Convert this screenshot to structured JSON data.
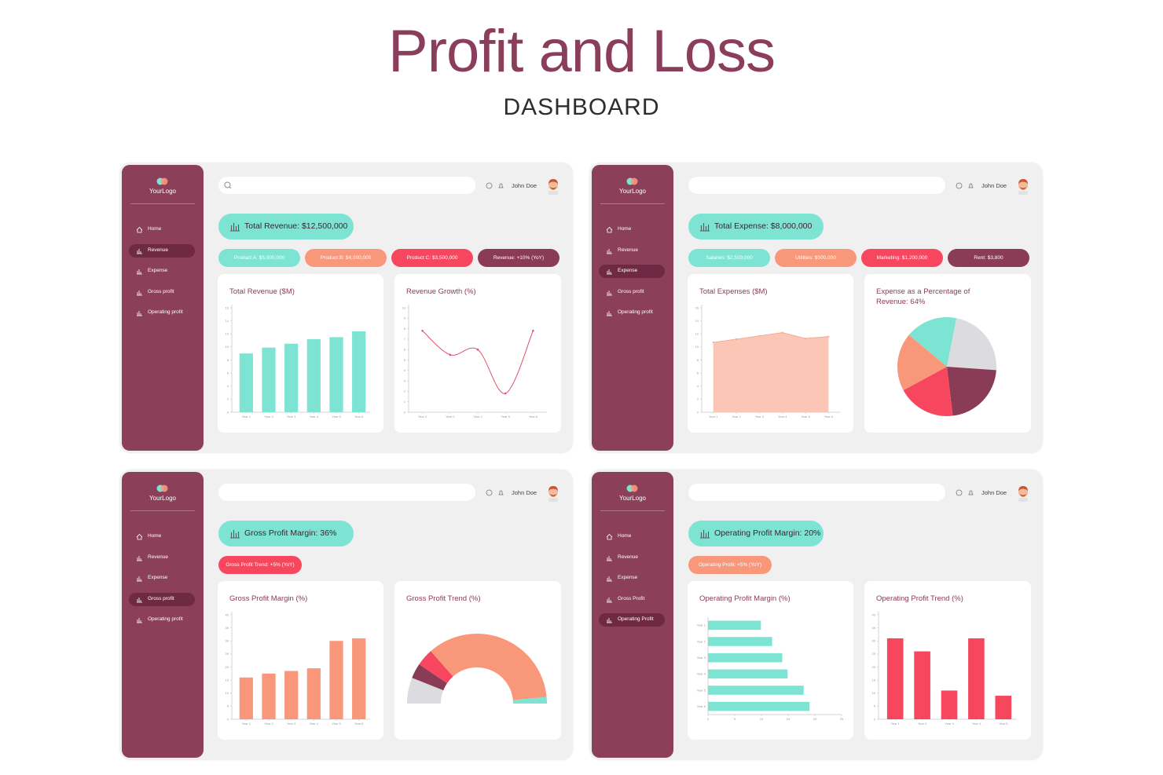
{
  "header": {
    "title": "Profit and Loss",
    "subtitle": "DASHBOARD"
  },
  "panels": [
    {
      "logo": "YourLogo",
      "user": "John Doe",
      "nav": [
        "Home",
        "Revenue",
        "Expense",
        "Gross profit",
        "Operating profit"
      ],
      "active": 1,
      "kpi": "Total Revenue: $12,500,000",
      "kpi_color": "#7de3d3",
      "chips": [
        {
          "text": "Product A: $5,000,000",
          "color": "#7de3d3"
        },
        {
          "text": "Product B: $4,000,000",
          "color": "#f8977a"
        },
        {
          "text": "Product C: $3,500,000",
          "color": "#f6475f"
        },
        {
          "text": "Revenue: +10% (YoY)",
          "color": "#8a3b55"
        }
      ],
      "charts": [
        {
          "type": "bar",
          "title": "Total Revenue ($M)",
          "categories": [
            "Year 1",
            "Year 2",
            "Year 3",
            "Year 4",
            "Year 5",
            "Year 6"
          ],
          "values": [
            9,
            9.9,
            10.5,
            11.2,
            11.5,
            12.4
          ],
          "color": "#7de3d3",
          "ylim": [
            0,
            16
          ],
          "yticks": [
            0,
            2,
            4,
            6,
            8,
            10,
            12,
            14,
            16
          ]
        },
        {
          "type": "line",
          "title": "Revenue Growth (%)",
          "categories": [
            "Year 2",
            "Year 3",
            "Year 4",
            "Year 5",
            "Year 6"
          ],
          "values": [
            7.8,
            5.5,
            6,
            1.8,
            7.8
          ],
          "color": "#e0536a",
          "ylim": [
            0,
            10
          ],
          "yticks": [
            0,
            1,
            2,
            3,
            4,
            5,
            6,
            7,
            8,
            9,
            10
          ]
        }
      ]
    },
    {
      "logo": "YourLogo",
      "user": "John Doe",
      "nav": [
        "Home",
        "Revenue",
        "Expense",
        "Gross profit",
        "Operating profit"
      ],
      "active": 2,
      "kpi": "Total Expense: $8,000,000",
      "kpi_color": "#7de3d3",
      "chips": [
        {
          "text": "Salaries: $2,500,000",
          "color": "#7de3d3"
        },
        {
          "text": "Utilities: $500,000",
          "color": "#f8977a"
        },
        {
          "text": "Marketing: $1,200,000",
          "color": "#f6475f"
        },
        {
          "text": "Rent: $3,800",
          "color": "#8a3b55"
        }
      ],
      "charts": [
        {
          "type": "area",
          "title": "Total Expenses ($M)",
          "categories": [
            "Year 1",
            "Year 2",
            "Year 3",
            "Year 4",
            "Year 5",
            "Year 6"
          ],
          "values": [
            10.7,
            11.2,
            11.7,
            12.2,
            11.3,
            11.6
          ],
          "color": "#fbc6b5",
          "ylim": [
            0,
            16
          ],
          "yticks": [
            0,
            2,
            4,
            6,
            8,
            10,
            12,
            14,
            16
          ]
        },
        {
          "type": "pie",
          "title": "Expense as a Percentage of Revenue: 64%",
          "values": [
            17,
            23,
            22,
            19,
            19
          ],
          "colors": [
            "#7de3d3",
            "#dcdce0",
            "#8a3b55",
            "#f6475f",
            "#f8977a"
          ]
        }
      ]
    },
    {
      "logo": "YourLogo",
      "user": "John Doe",
      "nav": [
        "Home",
        "Revenue",
        "Expense",
        "Gross profit",
        "Operating profit"
      ],
      "active": 3,
      "kpi": "Gross Profit Margin: 36%",
      "kpi_color": "#7de3d3",
      "chips": [
        {
          "text": "Gross Profit Trend: +5% (YoY)",
          "color": "#f6475f"
        }
      ],
      "charts": [
        {
          "type": "bar",
          "title": "Gross Profit Margin (%)",
          "categories": [
            "Year 1",
            "Year 2",
            "Year 3",
            "Year 4",
            "Year 5",
            "Year 6"
          ],
          "values": [
            16,
            17.5,
            18.5,
            19.5,
            30,
            31
          ],
          "color": "#f8977a",
          "ylim": [
            0,
            40
          ],
          "yticks": [
            0,
            5,
            10,
            15,
            20,
            25,
            30,
            35,
            40
          ]
        },
        {
          "type": "gauge",
          "title": "Gross Profit Trend (%)",
          "values": [
            12,
            7,
            8,
            70,
            3
          ],
          "colors": [
            "#dcdce0",
            "#8a3b55",
            "#f6475f",
            "#f8977a",
            "#7de3d3"
          ]
        }
      ]
    },
    {
      "logo": "YourLogo",
      "user": "John Doe",
      "nav": [
        "Home",
        "Revenue",
        "Expense",
        "Gross Profit",
        "Operating Profit"
      ],
      "active": 4,
      "kpi": "Operating Profit Margin: 20%",
      "kpi_color": "#7de3d3",
      "chips": [
        {
          "text": "Operating Profit: +5% (YoY)",
          "color": "#f8977a"
        }
      ],
      "charts": [
        {
          "type": "hbar",
          "title": "Operating Profit Margin (%)",
          "categories": [
            "Year 1",
            "Year 2",
            "Year 3",
            "Year 4",
            "Year 5",
            "Year 6"
          ],
          "values": [
            9.9,
            12,
            13.9,
            14.9,
            17.9,
            19
          ],
          "color": "#7de3d3",
          "xlim": [
            0,
            25
          ],
          "xticks": [
            0,
            5,
            10,
            15,
            20,
            25
          ]
        },
        {
          "type": "bar",
          "title": "Operating Profit Trend (%)",
          "categories": [
            "Year 1",
            "Year 2",
            "Year 3",
            "Year 4",
            "Year 5"
          ],
          "values": [
            31,
            26,
            11,
            31,
            9
          ],
          "color": "#f6475f",
          "ylim": [
            0,
            40
          ],
          "yticks": [
            0,
            5,
            10,
            15,
            20,
            25,
            30,
            35,
            40
          ]
        }
      ]
    }
  ]
}
